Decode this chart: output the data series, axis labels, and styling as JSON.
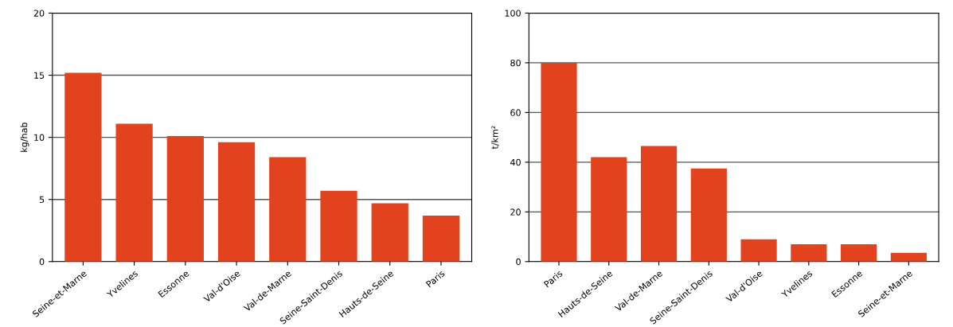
{
  "chart_data": [
    {
      "type": "bar",
      "ylabel": "kg/hab",
      "categories": [
        "Seine-et-Marne",
        "Yvelines",
        "Essonne",
        "Val-d'Oise",
        "Val-de-Marne",
        "Seine-Saint-Denis",
        "Hauts-de-Seine",
        "Paris"
      ],
      "values": [
        15.2,
        11.1,
        10.1,
        9.6,
        8.4,
        5.7,
        4.7,
        3.7
      ],
      "color": "#e2431e",
      "ylim": [
        0,
        20
      ],
      "yticks": [
        0,
        5,
        10,
        15,
        20
      ],
      "grid": "y"
    },
    {
      "type": "bar",
      "ylabel": "t/km²",
      "categories": [
        "Paris",
        "Hauts-de-Seine",
        "Val-de-Marne",
        "Seine-Saint-Denis",
        "Val-d'Oise",
        "Yvelines",
        "Essonne",
        "Seine-et-Marne"
      ],
      "values": [
        80,
        42,
        46.5,
        37.5,
        9,
        7,
        7,
        3.5
      ],
      "color": "#e2431e",
      "ylim": [
        0,
        100
      ],
      "yticks": [
        0,
        20,
        40,
        60,
        80,
        100
      ],
      "grid": "y"
    }
  ]
}
